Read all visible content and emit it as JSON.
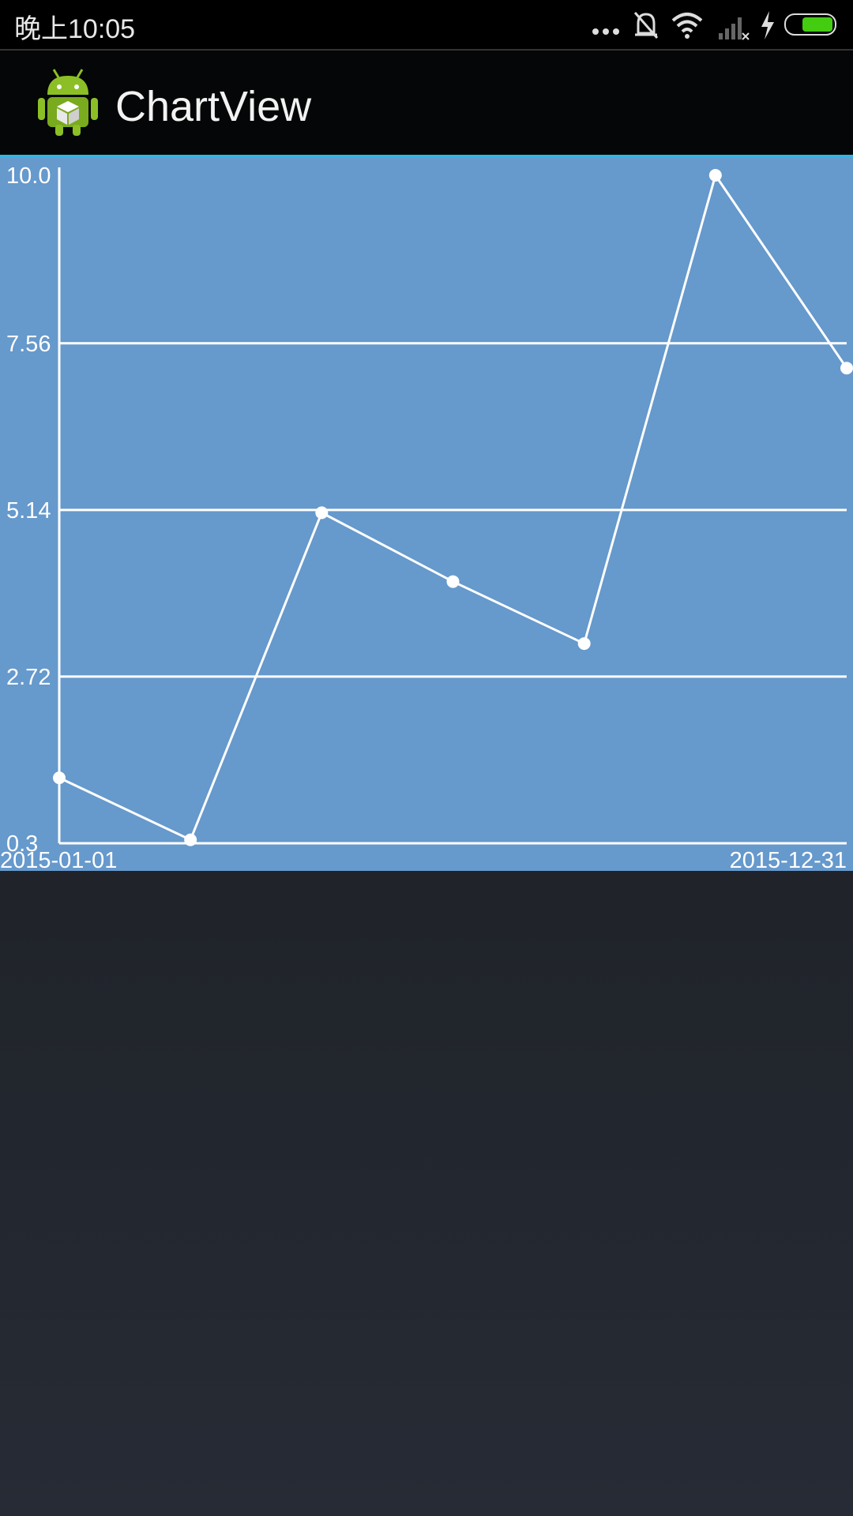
{
  "status_bar": {
    "time": "晚上10:05",
    "icons": [
      "more-dots-icon",
      "alarm-off-icon",
      "wifi-icon",
      "cell-signal-no-service-icon",
      "charging-bolt-icon",
      "battery-icon"
    ]
  },
  "action_bar": {
    "title": "ChartView",
    "icon": "android-app-icon"
  },
  "colors": {
    "chart_background": "#6699cc",
    "accent_line": "#33b5e5",
    "line": "#ffffff",
    "action_bar": "#050607",
    "status_bar": "#000000",
    "battery_fill": "#44cc11"
  },
  "chart_data": {
    "type": "line",
    "x_tick_labels": [
      "2015-01-01",
      "2015-12-31"
    ],
    "y_tick_labels": [
      "10.0",
      "7.56",
      "5.14",
      "2.72",
      "0.3"
    ],
    "y_ticks": [
      10.0,
      7.56,
      5.14,
      2.72,
      0.3
    ],
    "ylim": [
      0.3,
      10.0
    ],
    "grid": "horizontal",
    "series": [
      {
        "values": [
          1.25,
          0.35,
          5.1,
          4.1,
          3.2,
          10.0,
          7.2
        ]
      }
    ]
  }
}
